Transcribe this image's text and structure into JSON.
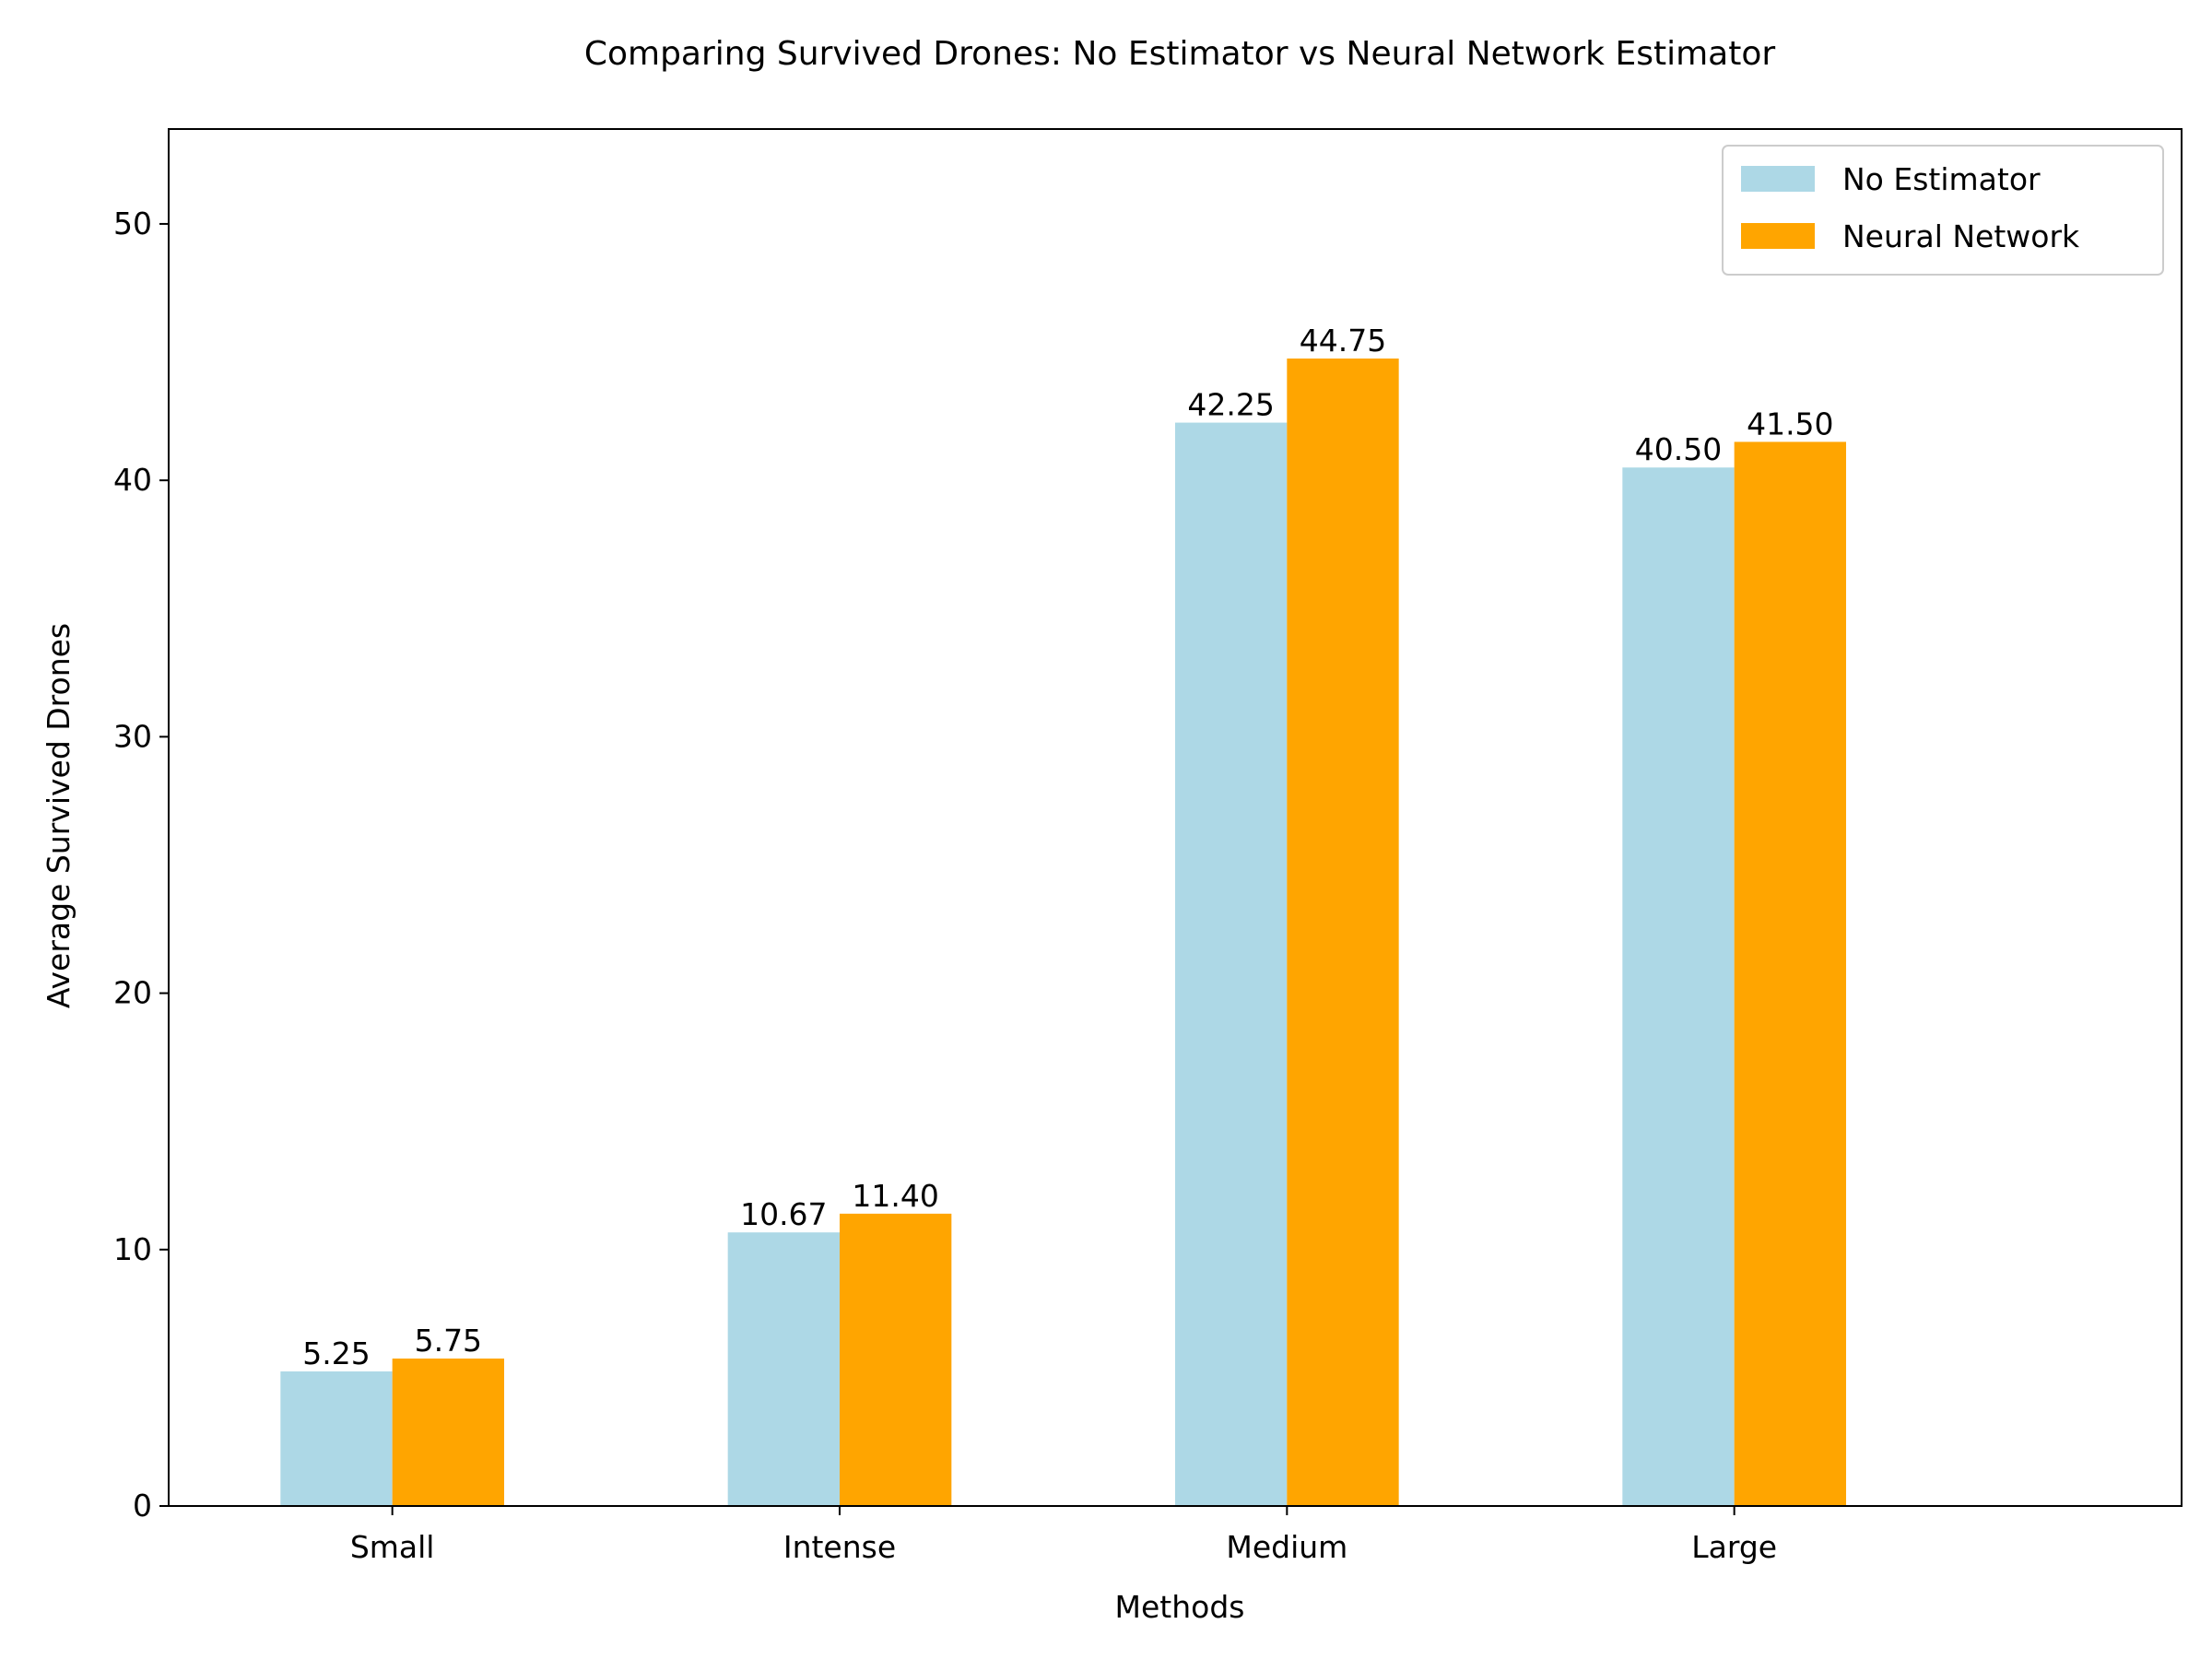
{
  "chart_data": {
    "type": "bar",
    "title": "Comparing Survived Drones: No Estimator vs Neural Network Estimator",
    "xlabel": "Methods",
    "ylabel": "Average Survived Drones",
    "categories": [
      "Small",
      "Intense",
      "Medium",
      "Large"
    ],
    "series": [
      {
        "name": "No Estimator",
        "color": "#add8e6",
        "values": [
          5.25,
          10.67,
          42.25,
          40.5
        ],
        "labels": [
          "5.25",
          "10.67",
          "42.25",
          "40.50"
        ]
      },
      {
        "name": "Neural Network",
        "color": "#ffa500",
        "values": [
          5.75,
          11.4,
          44.75,
          41.5
        ],
        "labels": [
          "5.75",
          "11.40",
          "44.75",
          "41.50"
        ]
      }
    ],
    "ylim": [
      0,
      53.7
    ],
    "yticks": [
      0,
      10,
      20,
      30,
      40,
      50
    ],
    "grid": false,
    "legend_position": "top-right"
  }
}
